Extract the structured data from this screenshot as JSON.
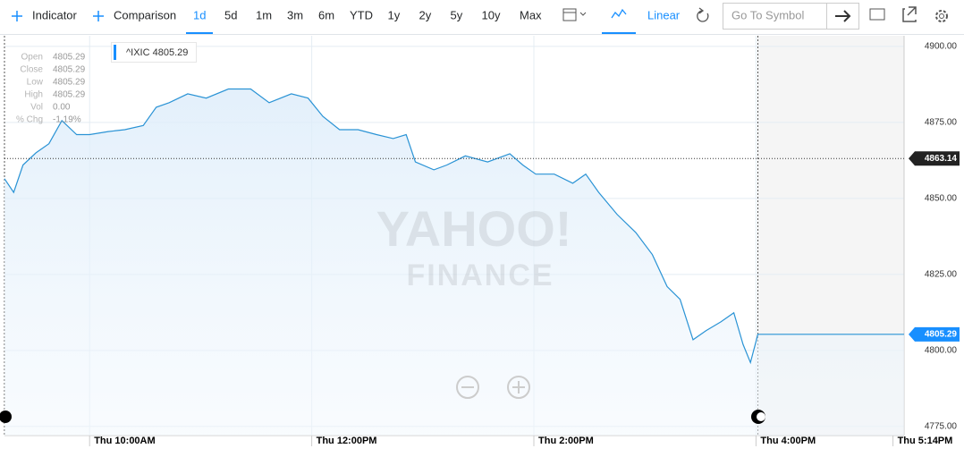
{
  "toolbar": {
    "indicator": "Indicator",
    "comparison": "Comparison",
    "ranges": [
      "1d",
      "5d",
      "1m",
      "3m",
      "6m",
      "YTD",
      "1y",
      "2y",
      "5y",
      "10y",
      "Max"
    ],
    "scale": "Linear",
    "symbol_placeholder": "Go To Symbol"
  },
  "watermark": {
    "line1": "YAHOO!",
    "line2": "FINANCE"
  },
  "quote": [
    {
      "label": "Open",
      "value": "4805.29"
    },
    {
      "label": "Close",
      "value": "4805.29"
    },
    {
      "label": "Low",
      "value": "4805.29"
    },
    {
      "label": "High",
      "value": "4805.29"
    },
    {
      "label": "Vol",
      "value": "0.00"
    },
    {
      "label": "% Chg",
      "value": "-1.19%"
    }
  ],
  "chart_data": {
    "type": "line",
    "symbol": "^IXIC",
    "last_price": 4805.29,
    "prev_close": 4863.14,
    "x": [
      554,
      559,
      564,
      571,
      578,
      585,
      593,
      600,
      610,
      619,
      629,
      636,
      643,
      653,
      663,
      675,
      687,
      697,
      709,
      718,
      726,
      735,
      745,
      755,
      764,
      771,
      776,
      786,
      793,
      803,
      815,
      827,
      834,
      841,
      851,
      861,
      868,
      875,
      885,
      895,
      904,
      912,
      919,
      926,
      933,
      941,
      948,
      953,
      957,
      961,
      1040
    ],
    "series": [
      {
        "color": "#2a93d5",
        "values": [
          4856.5,
          4852,
          4861,
          4865,
          4868,
          4875.6,
          4871,
          4871,
          4872,
          4872.6,
          4874,
          4880,
          4881.5,
          4884.4,
          4883,
          4886,
          4886,
          4881.5,
          4884.4,
          4883,
          4877,
          4872.6,
          4872.6,
          4871,
          4869.7,
          4871,
          4862,
          4859.4,
          4861,
          4864,
          4862,
          4864.7,
          4861,
          4858,
          4858,
          4855,
          4858,
          4852,
          4844.7,
          4838.8,
          4831.5,
          4821,
          4816.8,
          4803.5,
          4806.5,
          4809.4,
          4812.4,
          4802,
          4796,
          4805.29,
          4805.29
        ]
      }
    ],
    "xlim": [
      554,
      1040
    ],
    "market_close": 961,
    "xticks": [
      {
        "value": 600,
        "label": "Thu 10:00AM"
      },
      {
        "value": 720,
        "label": "Thu 12:00PM"
      },
      {
        "value": 840,
        "label": "Thu 2:00PM"
      },
      {
        "value": 960,
        "label": "Thu 4:00PM"
      },
      {
        "value": 1034,
        "label": "Thu 5:14PM"
      }
    ],
    "ylim": [
      4772,
      4903.5
    ],
    "yticks": [
      {
        "value": 4775,
        "label": "4775.00"
      },
      {
        "value": 4800,
        "label": "4800.00"
      },
      {
        "value": 4825,
        "label": "4825.00"
      },
      {
        "value": 4850,
        "label": "4850.00"
      },
      {
        "value": 4875,
        "label": "4875.00"
      },
      {
        "value": 4900,
        "label": "4900.00"
      }
    ],
    "grid": true
  }
}
